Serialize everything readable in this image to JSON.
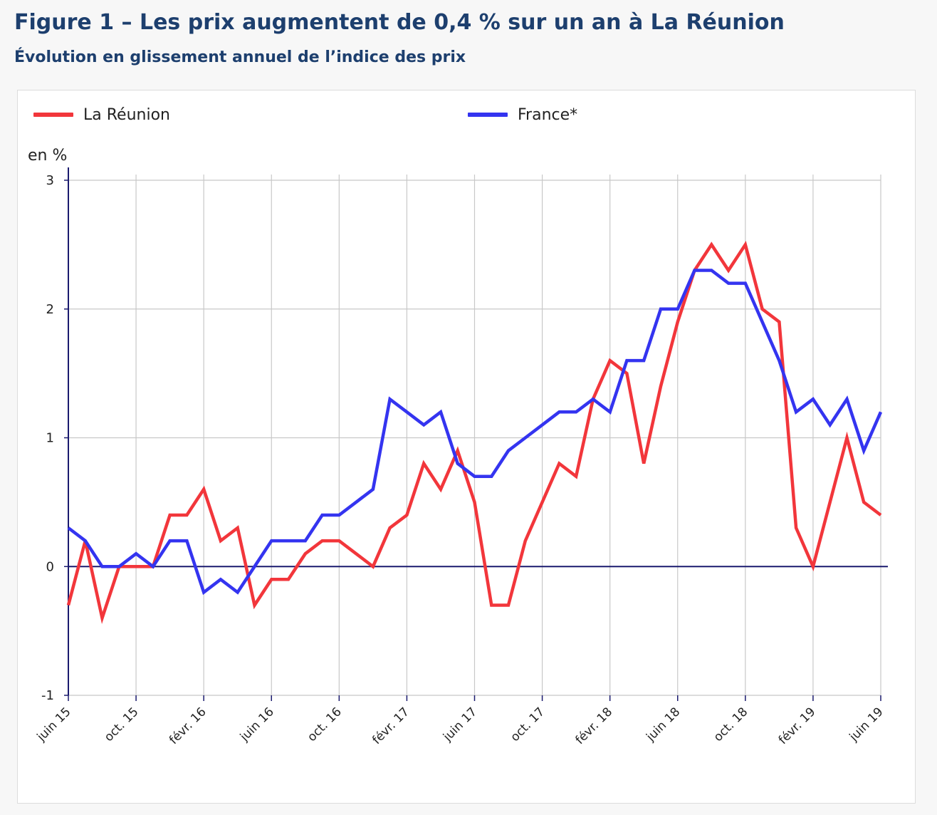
{
  "figure": {
    "title": "Figure 1 – Les prix augmentent de 0,4 % sur un an à La Réunion",
    "subtitle": "Évolution en glissement annuel de l’indice des prix"
  },
  "chart_data": {
    "type": "line",
    "title": "Figure 1 – Les prix augmentent de 0,4 % sur un an à La Réunion",
    "subtitle": "Évolution en glissement annuel de l’indice des prix",
    "ylabel": "en %",
    "xlabel": "",
    "ylim": [
      -1,
      3
    ],
    "yticks": [
      -1,
      0,
      1,
      2,
      3
    ],
    "ytick_labels": [
      "-1",
      "0",
      "1",
      "2",
      "3"
    ],
    "grid": true,
    "legend_position": "top",
    "x_months": [
      "2015-06",
      "2015-07",
      "2015-08",
      "2015-09",
      "2015-10",
      "2015-11",
      "2015-12",
      "2016-01",
      "2016-02",
      "2016-03",
      "2016-04",
      "2016-05",
      "2016-06",
      "2016-07",
      "2016-08",
      "2016-09",
      "2016-10",
      "2016-11",
      "2016-12",
      "2017-01",
      "2017-02",
      "2017-03",
      "2017-04",
      "2017-05",
      "2017-06",
      "2017-07",
      "2017-08",
      "2017-09",
      "2017-10",
      "2017-11",
      "2017-12",
      "2018-01",
      "2018-02",
      "2018-03",
      "2018-04",
      "2018-05",
      "2018-06",
      "2018-07",
      "2018-08",
      "2018-09",
      "2018-10",
      "2018-11",
      "2018-12",
      "2019-01",
      "2019-02",
      "2019-03",
      "2019-04",
      "2019-05",
      "2019-06"
    ],
    "tick_indices": [
      0,
      4,
      8,
      12,
      16,
      20,
      24,
      28,
      32,
      36,
      40,
      44,
      48
    ],
    "tick_labels": [
      "juin 15",
      "oct. 15",
      "févr. 16",
      "juin 16",
      "oct. 16",
      "févr. 17",
      "juin 17",
      "oct. 17",
      "févr. 18",
      "juin 18",
      "oct. 18",
      "févr. 19",
      "juin 19"
    ],
    "series": [
      {
        "name": "La Réunion",
        "color": "#f2363b",
        "values": [
          -0.3,
          0.2,
          -0.4,
          0.0,
          0.0,
          0.0,
          0.4,
          0.4,
          0.6,
          0.2,
          0.3,
          -0.3,
          -0.1,
          -0.1,
          0.1,
          0.2,
          0.2,
          0.1,
          0.0,
          0.3,
          0.4,
          0.8,
          0.6,
          0.9,
          0.5,
          -0.3,
          -0.3,
          0.2,
          0.5,
          0.8,
          0.7,
          1.3,
          1.6,
          1.5,
          0.8,
          1.4,
          1.9,
          2.3,
          2.5,
          2.3,
          2.5,
          2.0,
          1.9,
          0.3,
          0.0,
          0.5,
          1.0,
          0.5,
          0.4
        ]
      },
      {
        "name": "France*",
        "color": "#3434f0",
        "values": [
          0.3,
          0.2,
          0.0,
          0.0,
          0.1,
          0.0,
          0.2,
          0.2,
          -0.2,
          -0.1,
          -0.2,
          0.0,
          0.2,
          0.2,
          0.2,
          0.4,
          0.4,
          0.5,
          0.6,
          1.3,
          1.2,
          1.1,
          1.2,
          0.8,
          0.7,
          0.7,
          0.9,
          1.0,
          1.1,
          1.2,
          1.2,
          1.3,
          1.2,
          1.6,
          1.6,
          2.0,
          2.0,
          2.3,
          2.3,
          2.2,
          2.2,
          1.9,
          1.6,
          1.2,
          1.3,
          1.1,
          1.3,
          0.9,
          1.2
        ]
      }
    ]
  }
}
